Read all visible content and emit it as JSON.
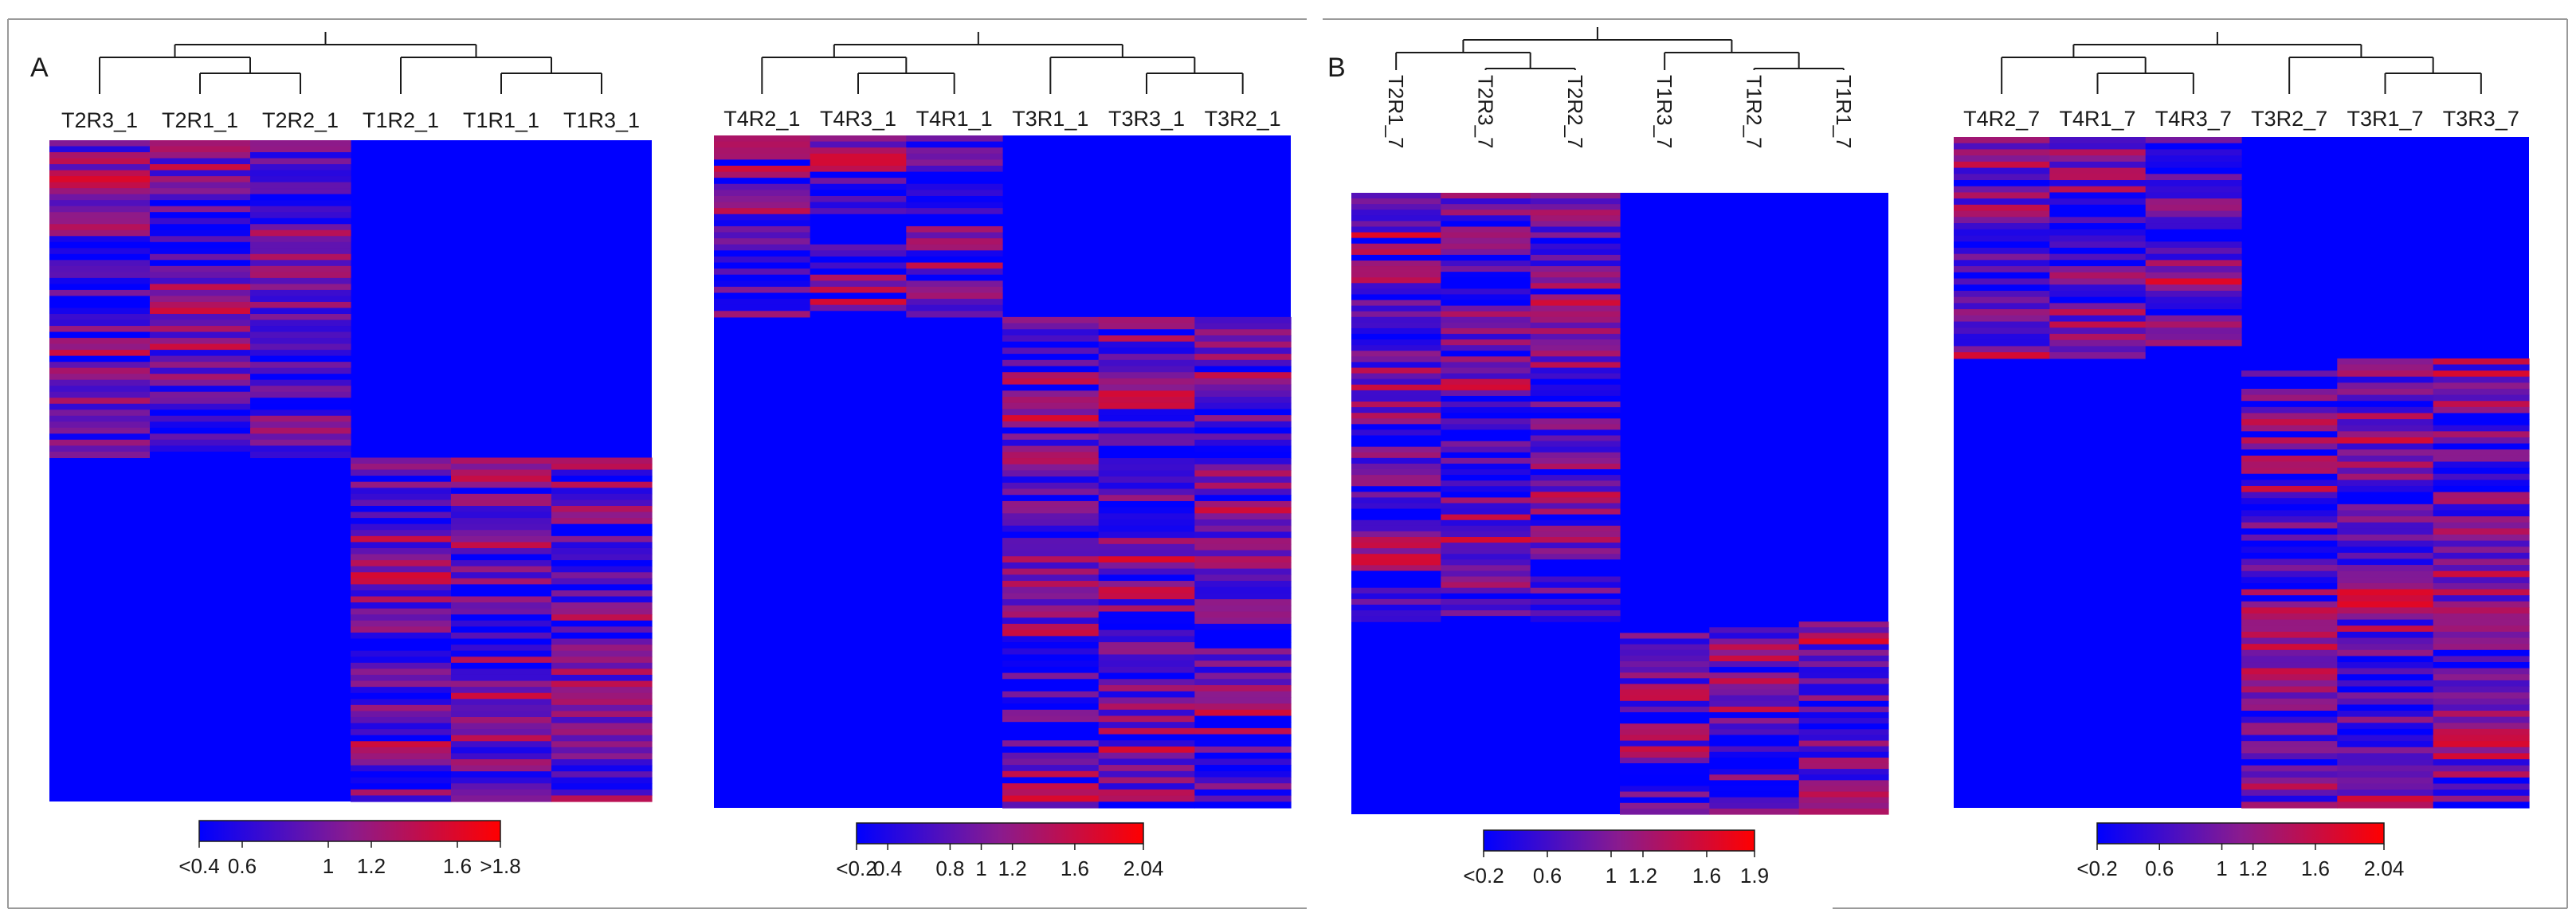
{
  "panel_labels": [
    "A",
    "B"
  ],
  "colors": {
    "low": "#0000ff",
    "mid": "#8a1b8e",
    "high": "#ff0000",
    "frame": "#9a9a9a",
    "text": "#1a1a1a"
  },
  "chart_data": [
    {
      "type": "heatmap",
      "panel": "A",
      "columns": [
        "T2R3_1",
        "T2R1_1",
        "T2R2_1",
        "T1R2_1",
        "T1R1_1",
        "T1R3_1"
      ],
      "dendrogram": "((T2R3_1,(T2R1_1,T2R2_1)),(T1R2_1,(T1R1_1,T1R3_1)))",
      "clusters": [
        {
          "rows": 0.48,
          "cols": [
            1,
            1,
            1,
            0,
            0,
            0
          ]
        },
        {
          "rows": 0.52,
          "cols": [
            0,
            0,
            0,
            1,
            1,
            1
          ]
        }
      ],
      "colorbar": {
        "min": 0.4,
        "max": 1.8,
        "tick_labels": [
          "<0.4",
          "0.6",
          "1",
          "1.2",
          "1.6",
          ">1.8"
        ],
        "tick_values": [
          0.4,
          0.6,
          1.0,
          1.2,
          1.6,
          1.8
        ]
      }
    },
    {
      "type": "heatmap",
      "panel": "A",
      "columns": [
        "T4R2_1",
        "T4R3_1",
        "T4R1_1",
        "T3R1_1",
        "T3R3_1",
        "T3R2_1"
      ],
      "dendrogram": "((T4R2_1,(T4R3_1,T4R1_1)),(T3R1_1,(T3R3_1,T3R2_1)))",
      "clusters": [
        {
          "rows": 0.27,
          "cols": [
            1,
            1,
            1,
            0,
            0,
            0
          ]
        },
        {
          "rows": 0.73,
          "cols": [
            0,
            0,
            0,
            1,
            1,
            1
          ]
        }
      ],
      "colorbar": {
        "min": 0.2,
        "max": 2.04,
        "tick_labels": [
          "<0.2",
          "0.4",
          "0.8",
          "1",
          "1.2",
          "1.6",
          "2.04"
        ],
        "tick_values": [
          0.2,
          0.4,
          0.8,
          1.0,
          1.2,
          1.6,
          2.04
        ]
      }
    },
    {
      "type": "heatmap",
      "panel": "B",
      "columns": [
        "T2R1_7",
        "T2R3_7",
        "T2R2_7",
        "T1R3_7",
        "T1R2_7",
        "T1R1_7"
      ],
      "column_labels_rotated": true,
      "dendrogram": "((T2R1_7,(T2R3_7,T2R2_7)),(T1R3_7,(T1R2_7,T1R1_7)))",
      "clusters": [
        {
          "rows": 0.69,
          "cols": [
            1,
            1,
            1,
            0,
            0,
            0
          ]
        },
        {
          "rows": 0.31,
          "cols": [
            0,
            0,
            0,
            1,
            1,
            1
          ]
        }
      ],
      "colorbar": {
        "min": 0.2,
        "max": 1.9,
        "tick_labels": [
          "<0.2",
          "0.6",
          "1",
          "1.2",
          "1.6",
          "1.9"
        ],
        "tick_values": [
          0.2,
          0.6,
          1.0,
          1.2,
          1.6,
          1.9
        ]
      }
    },
    {
      "type": "heatmap",
      "panel": "B",
      "columns": [
        "T4R2_7",
        "T4R1_7",
        "T4R3_7",
        "T3R2_7",
        "T3R1_7",
        "T3R3_7"
      ],
      "dendrogram": "((T4R2_7,(T4R1_7,T4R3_7)),(T3R2_7,(T3R1_7,T3R3_7)))",
      "clusters": [
        {
          "rows": 0.33,
          "cols": [
            1,
            1,
            1,
            0,
            0,
            0
          ]
        },
        {
          "rows": 0.67,
          "cols": [
            0,
            0,
            0,
            1,
            1,
            1
          ]
        }
      ],
      "colorbar": {
        "min": 0.2,
        "max": 2.04,
        "tick_labels": [
          "<0.2",
          "0.6",
          "1",
          "1.2",
          "1.6",
          "2.04"
        ],
        "tick_values": [
          0.2,
          0.6,
          1.0,
          1.2,
          1.6,
          2.04
        ]
      }
    }
  ]
}
